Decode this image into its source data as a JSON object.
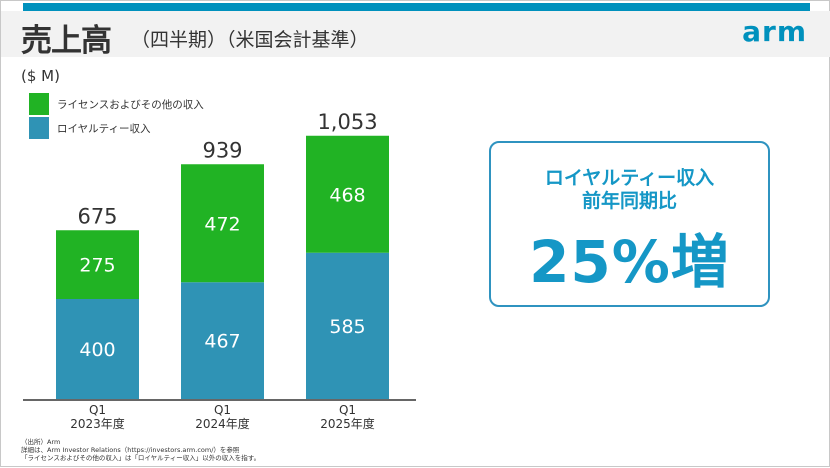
{
  "header": {
    "title": "売上高",
    "subtitle": "（四半期）（米国会計基準）",
    "logo": "arm"
  },
  "colors": {
    "license": "#21b324",
    "royalty": "#2f93b5",
    "accent": "#0091bd"
  },
  "chart_data": {
    "type": "bar",
    "stacked": true,
    "unit_label": "($ M)",
    "categories": [
      [
        "Q1",
        "2023年度"
      ],
      [
        "Q1",
        "2024年度"
      ],
      [
        "Q1",
        "2025年度"
      ]
    ],
    "series": [
      {
        "name": "ロイヤルティー収入",
        "values": [
          400,
          467,
          585
        ]
      },
      {
        "name": "ライセンスおよびその他の収入",
        "values": [
          275,
          472,
          468
        ]
      }
    ],
    "totals": [
      "675",
      "939",
      "1,053"
    ],
    "legend": "top-left",
    "grid": false
  },
  "callout": {
    "line1": "ロイヤルティー収入",
    "line2": "前年同期比",
    "value": "25%増"
  },
  "footnotes": [
    "（出所）Arm",
    "詳細は、Arm Investor Relations（https://investors.arm.com/）を参照",
    "「ライセンスおよびその他の収入」は「ロイヤルティー収入」以外の収入を指す。"
  ]
}
